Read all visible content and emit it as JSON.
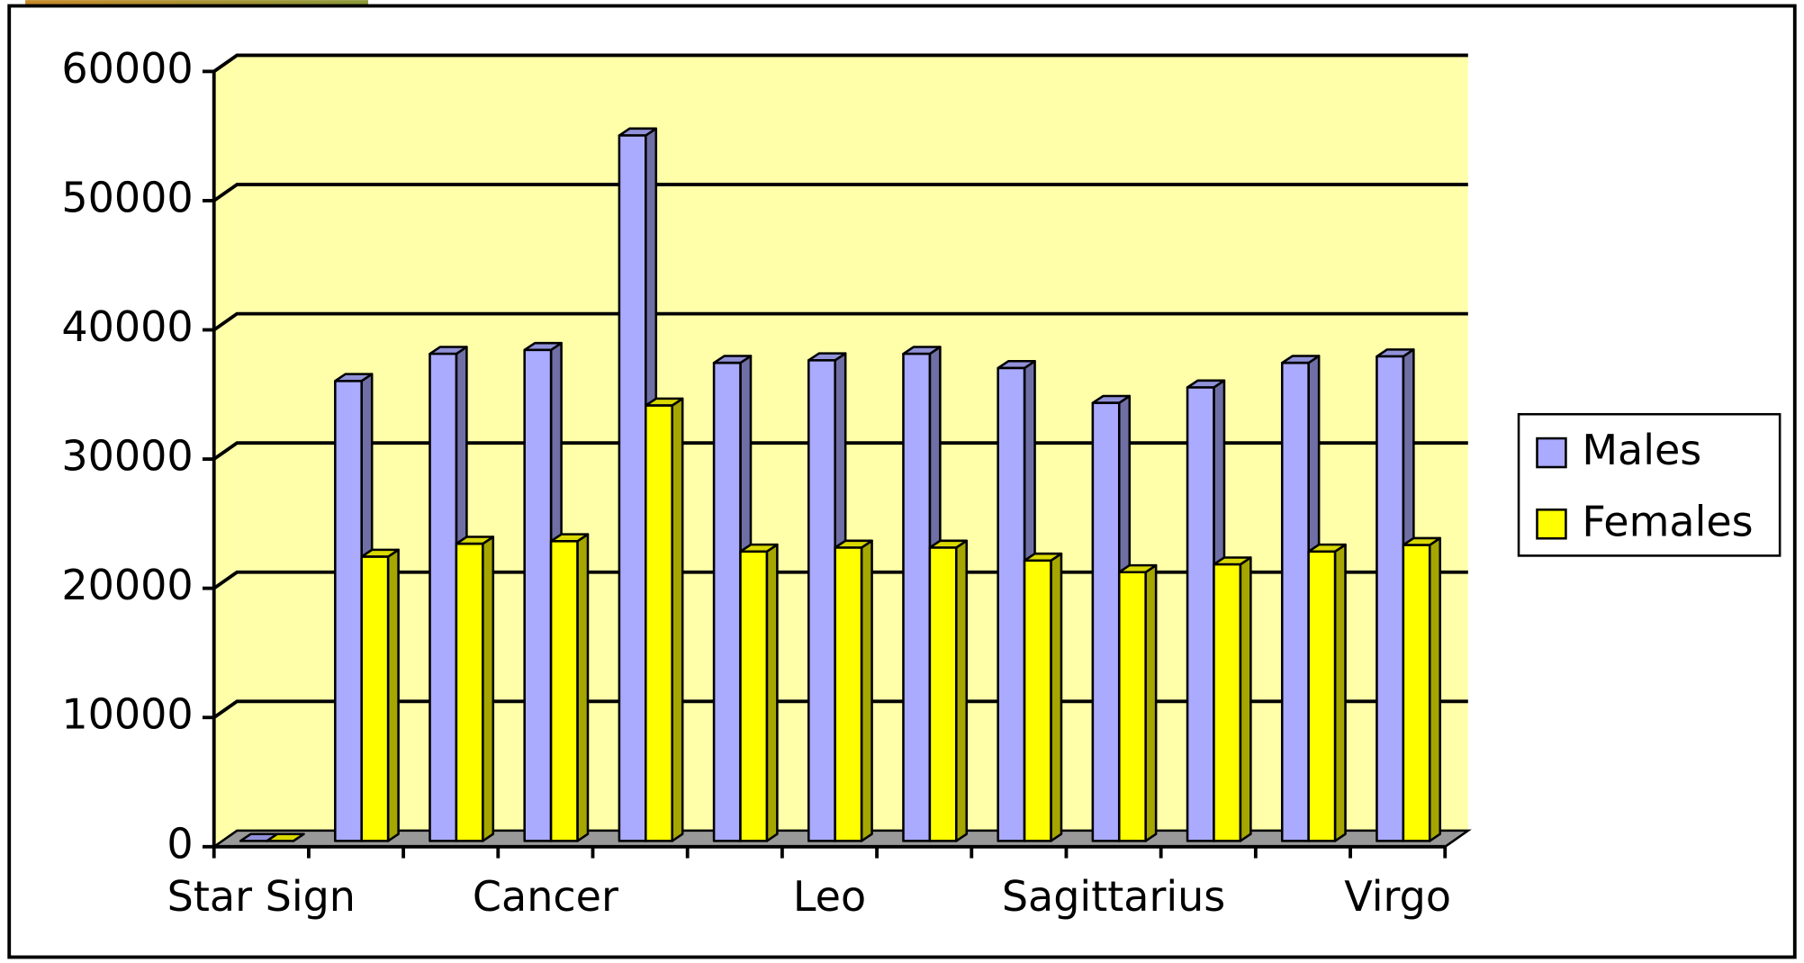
{
  "chart_data": {
    "type": "bar3d",
    "categories": [
      "Star Sign",
      null,
      null,
      "Cancer",
      null,
      null,
      "Leo",
      null,
      null,
      "Sagittarius",
      null,
      null,
      "Virgo"
    ],
    "series": [
      {
        "name": "Males",
        "color": "#aaaaff",
        "values": [
          0,
          35600,
          37700,
          38000,
          54600,
          37000,
          37200,
          37700,
          36600,
          33900,
          35100,
          37000,
          37500
        ]
      },
      {
        "name": "Females",
        "color": "#ffff00",
        "values": [
          0,
          22000,
          23000,
          23200,
          33700,
          22400,
          22700,
          22700,
          21700,
          20800,
          21400,
          22400,
          22900
        ]
      }
    ],
    "ylim": [
      0,
      60000
    ],
    "yticks": [
      0,
      10000,
      20000,
      30000,
      40000,
      50000,
      60000
    ],
    "grid": true,
    "legend": "right"
  }
}
